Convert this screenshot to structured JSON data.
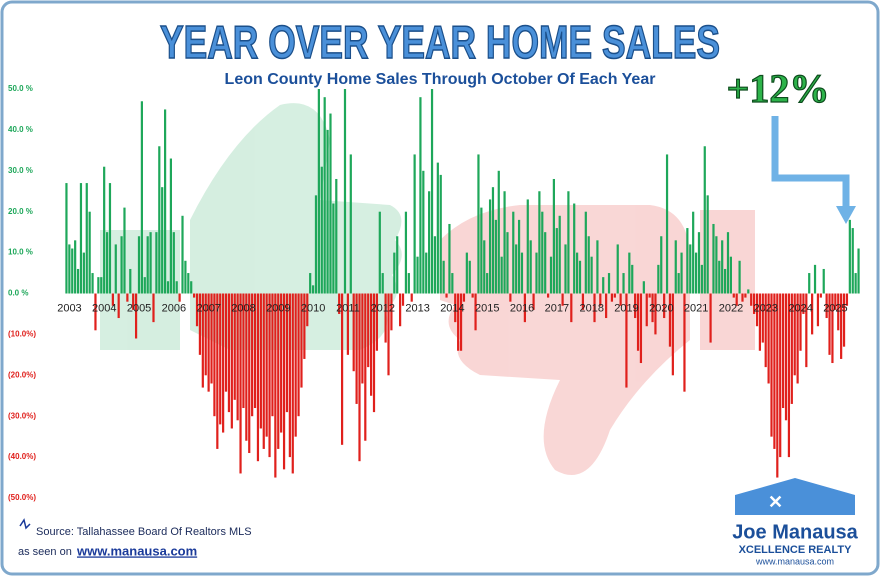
{
  "chart_data": {
    "type": "bar",
    "title": "YEAR OVER YEAR HOME SALES",
    "subtitle": "Leon County Home Sales Through October Of Each Year",
    "annotation": "+12%",
    "source": "Source: Tallahassee Board Of Realtors MLS",
    "seen_on": "as seen on",
    "website": "www.manausa.com",
    "logo": {
      "name": "Joe Manausa",
      "tagline": "XCELLENCE REALTY",
      "url": "www.manausa.com"
    },
    "positive_color": "#1ea75a",
    "negative_color": "#e0201c",
    "ylim": [
      -50,
      50
    ],
    "yticks": [
      {
        "value": 50,
        "label": "50.0 %"
      },
      {
        "value": 40,
        "label": "40.0 %"
      },
      {
        "value": 30,
        "label": "30.0 %"
      },
      {
        "value": 20,
        "label": "20.0 %"
      },
      {
        "value": 10,
        "label": "10.0 %"
      },
      {
        "value": 0,
        "label": "0.0 %"
      },
      {
        "value": -10,
        "label": "(10.0%)"
      },
      {
        "value": -20,
        "label": "(20.0%)"
      },
      {
        "value": -30,
        "label": "(30.0%)"
      },
      {
        "value": -40,
        "label": "(40.0%)"
      },
      {
        "value": -50,
        "label": "(50.0%)"
      }
    ],
    "categories": [
      "2003",
      null,
      null,
      null,
      null,
      null,
      null,
      null,
      null,
      null,
      null,
      null,
      "2004",
      null,
      null,
      null,
      null,
      null,
      null,
      null,
      null,
      null,
      null,
      null,
      "2005",
      null,
      null,
      null,
      null,
      null,
      null,
      null,
      null,
      null,
      null,
      null,
      "2006",
      null,
      null,
      null,
      null,
      null,
      null,
      null,
      null,
      null,
      null,
      null,
      "2007",
      null,
      null,
      null,
      null,
      null,
      null,
      null,
      null,
      null,
      null,
      null,
      "2008",
      null,
      null,
      null,
      null,
      null,
      null,
      null,
      null,
      null,
      null,
      null,
      "2009",
      null,
      null,
      null,
      null,
      null,
      null,
      null,
      null,
      null,
      null,
      null,
      "2010",
      null,
      null,
      null,
      null,
      null,
      null,
      null,
      null,
      null,
      null,
      null,
      "2011",
      null,
      null,
      null,
      null,
      null,
      null,
      null,
      null,
      null,
      null,
      null,
      "2012",
      null,
      null,
      null,
      null,
      null,
      null,
      null,
      null,
      null,
      null,
      null,
      "2013",
      null,
      null,
      null,
      null,
      null,
      null,
      null,
      null,
      null,
      null,
      null,
      "2014",
      null,
      null,
      null,
      null,
      null,
      null,
      null,
      null,
      null,
      null,
      null,
      "2015",
      null,
      null,
      null,
      null,
      null,
      null,
      null,
      null,
      null,
      null,
      null,
      "2016",
      null,
      null,
      null,
      null,
      null,
      null,
      null,
      null,
      null,
      null,
      null,
      "2017",
      null,
      null,
      null,
      null,
      null,
      null,
      null,
      null,
      null,
      null,
      null,
      "2018",
      null,
      null,
      null,
      null,
      null,
      null,
      null,
      null,
      null,
      null,
      null,
      "2019",
      null,
      null,
      null,
      null,
      null,
      null,
      null,
      null,
      null,
      null,
      null,
      "2020",
      null,
      null,
      null,
      null,
      null,
      null,
      null,
      null,
      null,
      null,
      null,
      "2021",
      null,
      null,
      null,
      null,
      null,
      null,
      null,
      null,
      null,
      null,
      null,
      "2022",
      null,
      null,
      null,
      null,
      null,
      null,
      null,
      null,
      null,
      null,
      null,
      "2023",
      null,
      null,
      null,
      null,
      null,
      null,
      null,
      null,
      null,
      null,
      null,
      "2024",
      null,
      null,
      null,
      null,
      null,
      null,
      null,
      null,
      null,
      null,
      null,
      "2025",
      null,
      null,
      null,
      null,
      null,
      null,
      null,
      null,
      null
    ],
    "values": [
      27,
      12,
      11,
      13,
      6,
      27,
      10,
      27,
      20,
      5,
      -9,
      4,
      4,
      31,
      15,
      27,
      -3,
      12,
      -6,
      14,
      21,
      -2,
      6,
      -4,
      -11,
      14,
      47,
      4,
      14,
      15,
      -7,
      15,
      36,
      26,
      45,
      3,
      33,
      15,
      3,
      -2,
      19,
      8,
      5,
      3,
      -1,
      -8,
      -15,
      -23,
      -20,
      -24,
      -22,
      -30,
      -38,
      -32,
      -34,
      -24,
      -29,
      -33,
      -26,
      -31,
      -44,
      -28,
      -36,
      -39,
      -30,
      -28,
      -41,
      -33,
      -38,
      -35,
      -40,
      -30,
      -45,
      -38,
      -34,
      -43,
      -29,
      -40,
      -44,
      -35,
      -30,
      -23,
      -16,
      -8,
      5,
      2,
      24,
      50,
      31,
      48,
      40,
      44,
      22,
      28,
      -5,
      -37,
      50,
      -15,
      34,
      -19,
      -27,
      -41,
      -22,
      -36,
      -18,
      -25,
      -29,
      -14,
      20,
      5,
      -12,
      -20,
      -9,
      10,
      14,
      -8,
      -3,
      20,
      5,
      -2,
      34,
      9,
      48,
      30,
      10,
      25,
      50,
      14,
      32,
      29,
      8,
      -1,
      17,
      5,
      -7,
      -14,
      -14,
      -2,
      10,
      8,
      -1,
      -9,
      34,
      21,
      13,
      5,
      23,
      26,
      18,
      30,
      9,
      25,
      15,
      -2,
      20,
      12,
      18,
      10,
      -7,
      23,
      13,
      -4,
      10,
      25,
      20,
      15,
      -1,
      9,
      28,
      16,
      19,
      -3,
      12,
      25,
      -7,
      22,
      10,
      8,
      -4,
      20,
      14,
      9,
      -7,
      13,
      -3,
      4,
      -6,
      5,
      -2,
      -1,
      12,
      -3,
      5,
      -23,
      10,
      7,
      -6,
      -14,
      -17,
      3,
      -8,
      -1,
      -7,
      -10,
      7,
      14,
      -6,
      34,
      -13,
      -20,
      13,
      5,
      10,
      -24,
      16,
      12,
      20,
      10,
      15,
      7,
      36,
      24,
      -12,
      17,
      14,
      8,
      13,
      6,
      15,
      9,
      -1,
      -3,
      8,
      -2,
      -1,
      1,
      -3,
      -5,
      -8,
      -14,
      -12,
      -18,
      -22,
      -35,
      -38,
      -45,
      -40,
      -28,
      -31,
      -40,
      -27,
      -20,
      -22,
      -14,
      -5,
      -18,
      5,
      -10,
      7,
      -8,
      -1,
      6,
      -6,
      -15,
      -17,
      -4,
      -9,
      -16,
      -13,
      -3,
      18,
      16,
      5,
      11
    ]
  }
}
